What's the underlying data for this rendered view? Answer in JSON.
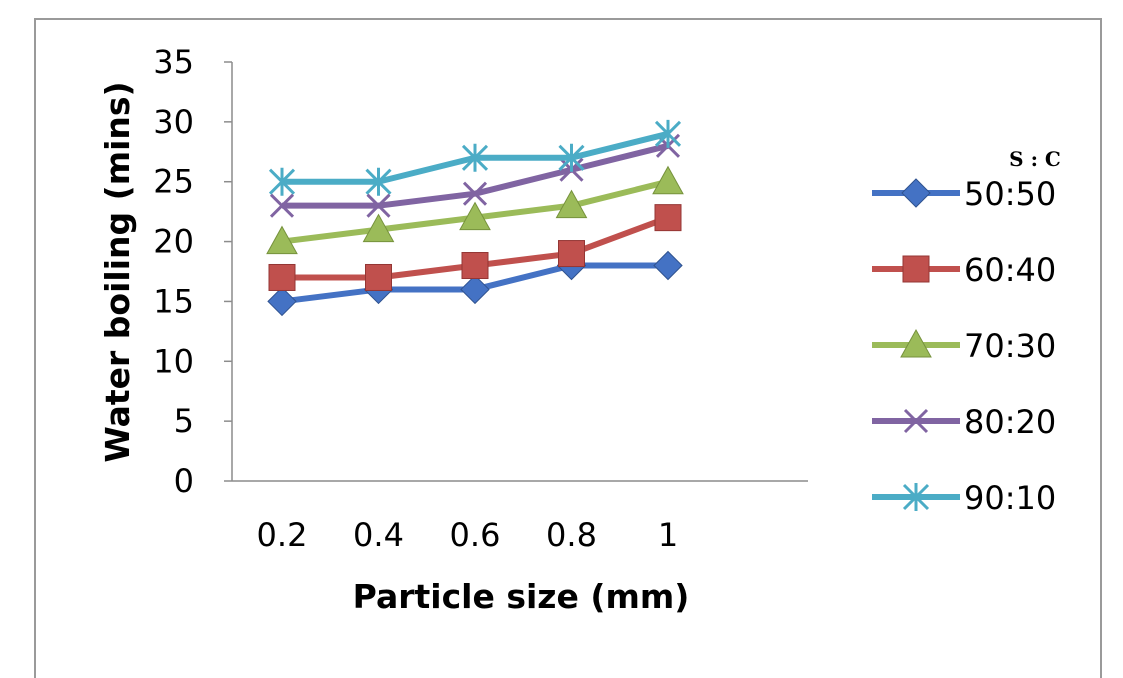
{
  "chart_data": {
    "type": "line",
    "xlabel": "Particle size (mm)",
    "ylabel": "Water boiling (mins)",
    "x": [
      "0.2",
      "0.4",
      "0.6",
      "0.8",
      "1"
    ],
    "yticks": [
      "0",
      "5",
      "10",
      "15",
      "20",
      "25",
      "30",
      "35"
    ],
    "ylim": [
      0,
      35
    ],
    "grid": false,
    "legend_title": "S : C",
    "legend_position": "right",
    "series": [
      {
        "name": "50:50",
        "values": [
          15,
          16,
          16,
          18,
          18
        ],
        "marker": "diamond",
        "color": "#4472C4"
      },
      {
        "name": "60:40",
        "values": [
          17,
          17,
          18,
          19,
          22
        ],
        "marker": "square",
        "color": "#C0504D"
      },
      {
        "name": "70:30",
        "values": [
          20,
          21,
          22,
          23,
          25
        ],
        "marker": "triangle",
        "color": "#9BBB59"
      },
      {
        "name": "80:20",
        "values": [
          23,
          23,
          24,
          26,
          28
        ],
        "marker": "x",
        "color": "#8064A2"
      },
      {
        "name": "90:10",
        "values": [
          25,
          25,
          27,
          27,
          29
        ],
        "marker": "star",
        "color": "#4BACC6"
      }
    ]
  }
}
